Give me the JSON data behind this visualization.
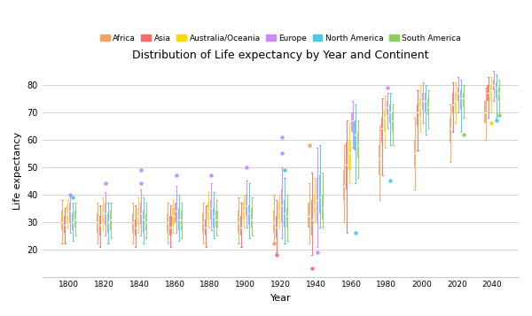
{
  "title": "Distribution of Life expectancy by Year and Continent",
  "xlabel": "Year",
  "ylabel": "Life expectancy",
  "continents": [
    "Africa",
    "Asia",
    "Australia/Oceania",
    "Europe",
    "North America",
    "South America"
  ],
  "colors": {
    "Africa": "#F4A460",
    "Asia": "#FF6B6B",
    "Australia/Oceania": "#FFD700",
    "Europe": "#CC88FF",
    "North America": "#4DC8E8",
    "South America": "#90CD60"
  },
  "years": [
    1800,
    1820,
    1840,
    1860,
    1880,
    1900,
    1920,
    1940,
    1960,
    1980,
    2000,
    2020,
    2040
  ],
  "ylim": [
    10,
    87
  ],
  "yticks": [
    20,
    30,
    40,
    50,
    60,
    70,
    80
  ],
  "box_data": {
    "1800": {
      "Africa": {
        "wl": 22,
        "q1": 27,
        "med": 30,
        "q3": 34,
        "wh": 38,
        "ol": [],
        "oh": []
      },
      "Asia": {
        "wl": 22,
        "q1": 26,
        "med": 29,
        "q3": 32,
        "wh": 35,
        "ol": [],
        "oh": []
      },
      "Australia/Oceania": {
        "wl": 28,
        "q1": 30,
        "med": 33,
        "q3": 36,
        "wh": 38,
        "ol": [],
        "oh": []
      },
      "Europe": {
        "wl": 26,
        "q1": 30,
        "med": 34,
        "q3": 37,
        "wh": 40,
        "ol": [],
        "oh": [
          40
        ]
      },
      "North America": {
        "wl": 23,
        "q1": 27,
        "med": 30,
        "q3": 33,
        "wh": 37,
        "ol": [],
        "oh": [
          39
        ]
      },
      "South America": {
        "wl": 25,
        "q1": 28,
        "med": 31,
        "q3": 34,
        "wh": 37,
        "ol": [],
        "oh": []
      }
    },
    "1820": {
      "Africa": {
        "wl": 22,
        "q1": 26,
        "med": 30,
        "q3": 33,
        "wh": 37,
        "ol": [],
        "oh": []
      },
      "Asia": {
        "wl": 21,
        "q1": 25,
        "med": 29,
        "q3": 32,
        "wh": 36,
        "ol": [],
        "oh": []
      },
      "Australia/Oceania": {
        "wl": 27,
        "q1": 30,
        "med": 33,
        "q3": 36,
        "wh": 39,
        "ol": [],
        "oh": []
      },
      "Europe": {
        "wl": 25,
        "q1": 29,
        "med": 33,
        "q3": 37,
        "wh": 41,
        "ol": [],
        "oh": [
          44
        ]
      },
      "North America": {
        "wl": 22,
        "q1": 26,
        "med": 30,
        "q3": 33,
        "wh": 37,
        "ol": [],
        "oh": []
      },
      "South America": {
        "wl": 24,
        "q1": 27,
        "med": 31,
        "q3": 34,
        "wh": 37,
        "ol": [],
        "oh": []
      }
    },
    "1840": {
      "Africa": {
        "wl": 22,
        "q1": 26,
        "med": 30,
        "q3": 33,
        "wh": 37,
        "ol": [],
        "oh": []
      },
      "Asia": {
        "wl": 21,
        "q1": 25,
        "med": 28,
        "q3": 31,
        "wh": 36,
        "ol": [],
        "oh": []
      },
      "Australia/Oceania": {
        "wl": 26,
        "q1": 29,
        "med": 32,
        "q3": 35,
        "wh": 39,
        "ol": [],
        "oh": []
      },
      "Europe": {
        "wl": 25,
        "q1": 29,
        "med": 33,
        "q3": 37,
        "wh": 42,
        "ol": [],
        "oh": [
          44,
          49
        ]
      },
      "North America": {
        "wl": 22,
        "q1": 26,
        "med": 31,
        "q3": 34,
        "wh": 39,
        "ol": [],
        "oh": []
      },
      "South America": {
        "wl": 24,
        "q1": 27,
        "med": 30,
        "q3": 33,
        "wh": 37,
        "ol": [],
        "oh": []
      }
    },
    "1860": {
      "Africa": {
        "wl": 22,
        "q1": 26,
        "med": 30,
        "q3": 33,
        "wh": 37,
        "ol": [],
        "oh": []
      },
      "Asia": {
        "wl": 21,
        "q1": 25,
        "med": 28,
        "q3": 32,
        "wh": 36,
        "ol": [],
        "oh": []
      },
      "Australia/Oceania": {
        "wl": 26,
        "q1": 29,
        "med": 32,
        "q3": 35,
        "wh": 38,
        "ol": [],
        "oh": []
      },
      "Europe": {
        "wl": 26,
        "q1": 30,
        "med": 34,
        "q3": 37,
        "wh": 43,
        "ol": [],
        "oh": [
          47
        ]
      },
      "North America": {
        "wl": 23,
        "q1": 27,
        "med": 31,
        "q3": 35,
        "wh": 40,
        "ol": [],
        "oh": []
      },
      "South America": {
        "wl": 24,
        "q1": 27,
        "med": 31,
        "q3": 34,
        "wh": 37,
        "ol": [],
        "oh": []
      }
    },
    "1880": {
      "Africa": {
        "wl": 22,
        "q1": 26,
        "med": 30,
        "q3": 33,
        "wh": 37,
        "ol": [],
        "oh": []
      },
      "Asia": {
        "wl": 21,
        "q1": 25,
        "med": 28,
        "q3": 31,
        "wh": 36,
        "ol": [],
        "oh": []
      },
      "Australia/Oceania": {
        "wl": 28,
        "q1": 31,
        "med": 34,
        "q3": 37,
        "wh": 41,
        "ol": [],
        "oh": []
      },
      "Europe": {
        "wl": 27,
        "q1": 31,
        "med": 35,
        "q3": 38,
        "wh": 44,
        "ol": [],
        "oh": [
          47
        ]
      },
      "North America": {
        "wl": 24,
        "q1": 28,
        "med": 32,
        "q3": 35,
        "wh": 41,
        "ol": [],
        "oh": []
      },
      "South America": {
        "wl": 25,
        "q1": 28,
        "med": 31,
        "q3": 34,
        "wh": 38,
        "ol": [],
        "oh": []
      }
    },
    "1900": {
      "Africa": {
        "wl": 22,
        "q1": 26,
        "med": 30,
        "q3": 34,
        "wh": 39,
        "ol": [],
        "oh": []
      },
      "Asia": {
        "wl": 21,
        "q1": 25,
        "med": 28,
        "q3": 32,
        "wh": 37,
        "ol": [],
        "oh": []
      },
      "Australia/Oceania": {
        "wl": 28,
        "q1": 31,
        "med": 34,
        "q3": 37,
        "wh": 40,
        "ol": [],
        "oh": []
      },
      "Europe": {
        "wl": 28,
        "q1": 32,
        "med": 36,
        "q3": 40,
        "wh": 45,
        "ol": [],
        "oh": [
          50
        ]
      },
      "North America": {
        "wl": 24,
        "q1": 29,
        "med": 33,
        "q3": 36,
        "wh": 44,
        "ol": [],
        "oh": []
      },
      "South America": {
        "wl": 25,
        "q1": 28,
        "med": 31,
        "q3": 35,
        "wh": 39,
        "ol": [],
        "oh": []
      }
    },
    "1920": {
      "Africa": {
        "wl": 22,
        "q1": 26,
        "med": 30,
        "q3": 34,
        "wh": 40,
        "ol": [
          22
        ],
        "oh": []
      },
      "Asia": {
        "wl": 19,
        "q1": 24,
        "med": 28,
        "q3": 32,
        "wh": 38,
        "ol": [
          18
        ],
        "oh": []
      },
      "Australia/Oceania": {
        "wl": 28,
        "q1": 31,
        "med": 34,
        "q3": 37,
        "wh": 40,
        "ol": [],
        "oh": []
      },
      "Europe": {
        "wl": 24,
        "q1": 30,
        "med": 36,
        "q3": 42,
        "wh": 50,
        "ol": [],
        "oh": [
          55,
          61
        ]
      },
      "North America": {
        "wl": 22,
        "q1": 28,
        "med": 33,
        "q3": 38,
        "wh": 46,
        "ol": [],
        "oh": [
          49
        ]
      },
      "South America": {
        "wl": 23,
        "q1": 28,
        "med": 32,
        "q3": 35,
        "wh": 40,
        "ol": [],
        "oh": []
      }
    },
    "1940": {
      "Africa": {
        "wl": 22,
        "q1": 28,
        "med": 32,
        "q3": 37,
        "wh": 44,
        "ol": [],
        "oh": [
          58
        ]
      },
      "Asia": {
        "wl": 18,
        "q1": 25,
        "med": 31,
        "q3": 38,
        "wh": 48,
        "ol": [
          13
        ],
        "oh": []
      },
      "Australia/Oceania": {
        "wl": 30,
        "q1": 33,
        "med": 36,
        "q3": 40,
        "wh": 46,
        "ol": [],
        "oh": []
      },
      "Europe": {
        "wl": 21,
        "q1": 30,
        "med": 38,
        "q3": 46,
        "wh": 57,
        "ol": [
          19
        ],
        "oh": []
      },
      "North America": {
        "wl": 28,
        "q1": 33,
        "med": 39,
        "q3": 47,
        "wh": 58,
        "ol": [],
        "oh": []
      },
      "South America": {
        "wl": 28,
        "q1": 31,
        "med": 35,
        "q3": 40,
        "wh": 48,
        "ol": [],
        "oh": []
      }
    },
    "1960": {
      "Africa": {
        "wl": 30,
        "q1": 38,
        "med": 43,
        "q3": 49,
        "wh": 58,
        "ol": [],
        "oh": []
      },
      "Asia": {
        "wl": 26,
        "q1": 42,
        "med": 51,
        "q3": 59,
        "wh": 67,
        "ol": [],
        "oh": []
      },
      "Australia/Oceania": {
        "wl": 44,
        "q1": 49,
        "med": 55,
        "q3": 60,
        "wh": 66,
        "ol": [],
        "oh": []
      },
      "Europe": {
        "wl": 57,
        "q1": 63,
        "med": 67,
        "q3": 70,
        "wh": 74,
        "ol": [],
        "oh": []
      },
      "North America": {
        "wl": 44,
        "q1": 56,
        "med": 62,
        "q3": 67,
        "wh": 73,
        "ol": [
          26
        ],
        "oh": []
      },
      "South America": {
        "wl": 46,
        "q1": 53,
        "med": 58,
        "q3": 63,
        "wh": 67,
        "ol": [],
        "oh": []
      }
    },
    "1980": {
      "Africa": {
        "wl": 38,
        "q1": 47,
        "med": 53,
        "q3": 58,
        "wh": 65,
        "ol": [],
        "oh": []
      },
      "Asia": {
        "wl": 47,
        "q1": 59,
        "med": 64,
        "q3": 68,
        "wh": 75,
        "ol": [],
        "oh": []
      },
      "Australia/Oceania": {
        "wl": 57,
        "q1": 63,
        "med": 68,
        "q3": 71,
        "wh": 76,
        "ol": [],
        "oh": []
      },
      "Europe": {
        "wl": 64,
        "q1": 69,
        "med": 72,
        "q3": 74,
        "wh": 77,
        "ol": [],
        "oh": [
          79
        ]
      },
      "North America": {
        "wl": 58,
        "q1": 66,
        "med": 70,
        "q3": 73,
        "wh": 77,
        "ol": [
          45
        ],
        "oh": []
      },
      "South America": {
        "wl": 58,
        "q1": 63,
        "med": 67,
        "q3": 70,
        "wh": 73,
        "ol": [],
        "oh": []
      }
    },
    "2000": {
      "Africa": {
        "wl": 42,
        "q1": 50,
        "med": 55,
        "q3": 60,
        "wh": 68,
        "ol": [],
        "oh": []
      },
      "Asia": {
        "wl": 56,
        "q1": 65,
        "med": 70,
        "q3": 73,
        "wh": 78,
        "ol": [],
        "oh": []
      },
      "Australia/Oceania": {
        "wl": 63,
        "q1": 68,
        "med": 72,
        "q3": 75,
        "wh": 80,
        "ol": [],
        "oh": []
      },
      "Europe": {
        "wl": 66,
        "q1": 71,
        "med": 74,
        "q3": 77,
        "wh": 81,
        "ol": [],
        "oh": []
      },
      "North America": {
        "wl": 62,
        "q1": 70,
        "med": 74,
        "q3": 77,
        "wh": 80,
        "ol": [],
        "oh": []
      },
      "South America": {
        "wl": 64,
        "q1": 69,
        "med": 72,
        "q3": 75,
        "wh": 78,
        "ol": [],
        "oh": []
      }
    },
    "2020": {
      "Africa": {
        "wl": 52,
        "q1": 59,
        "med": 64,
        "q3": 68,
        "wh": 73,
        "ol": [],
        "oh": []
      },
      "Asia": {
        "wl": 63,
        "q1": 70,
        "med": 73,
        "q3": 77,
        "wh": 81,
        "ol": [],
        "oh": []
      },
      "Australia/Oceania": {
        "wl": 66,
        "q1": 70,
        "med": 74,
        "q3": 77,
        "wh": 81,
        "ol": [],
        "oh": []
      },
      "Europe": {
        "wl": 70,
        "q1": 74,
        "med": 77,
        "q3": 79,
        "wh": 83,
        "ol": [],
        "oh": []
      },
      "North America": {
        "wl": 63,
        "q1": 71,
        "med": 75,
        "q3": 78,
        "wh": 82,
        "ol": [],
        "oh": []
      },
      "South America": {
        "wl": 68,
        "q1": 72,
        "med": 75,
        "q3": 77,
        "wh": 80,
        "ol": [],
        "oh": [
          62
        ]
      }
    },
    "2040": {
      "Africa": {
        "wl": 60,
        "q1": 66,
        "med": 70,
        "q3": 74,
        "wh": 79,
        "ol": [],
        "oh": []
      },
      "Asia": {
        "wl": 68,
        "q1": 74,
        "med": 77,
        "q3": 80,
        "wh": 83,
        "ol": [],
        "oh": []
      },
      "Australia/Oceania": {
        "wl": 70,
        "q1": 74,
        "med": 78,
        "q3": 80,
        "wh": 83,
        "ol": [
          66
        ],
        "oh": []
      },
      "Europe": {
        "wl": 74,
        "q1": 78,
        "med": 80,
        "q3": 82,
        "wh": 85,
        "ol": [],
        "oh": []
      },
      "North America": {
        "wl": 68,
        "q1": 75,
        "med": 79,
        "q3": 81,
        "wh": 84,
        "ol": [
          67
        ],
        "oh": []
      },
      "South America": {
        "wl": 70,
        "q1": 74,
        "med": 77,
        "q3": 79,
        "wh": 82,
        "ol": [],
        "oh": [
          69
        ]
      }
    }
  }
}
